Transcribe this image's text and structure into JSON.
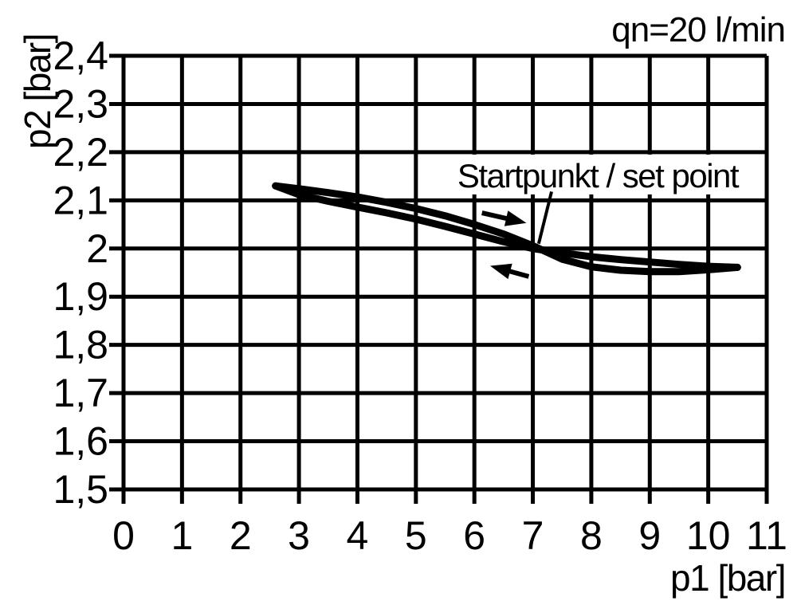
{
  "colors": {
    "ink": "#000000",
    "background": "#ffffff"
  },
  "chart_data": {
    "type": "line",
    "flow_annotation": "qn=20 l/min",
    "xlabel": "p1 [bar]",
    "ylabel": "p2 [bar]",
    "xlim": [
      0,
      11
    ],
    "ylim": [
      1.5,
      2.4
    ],
    "grid": true,
    "legend": "none",
    "xticks": [
      {
        "value": 0,
        "label": "0"
      },
      {
        "value": 1,
        "label": "1"
      },
      {
        "value": 2,
        "label": "2"
      },
      {
        "value": 3,
        "label": "3"
      },
      {
        "value": 4,
        "label": "4"
      },
      {
        "value": 5,
        "label": "5"
      },
      {
        "value": 6,
        "label": "6"
      },
      {
        "value": 7,
        "label": "7"
      },
      {
        "value": 8,
        "label": "8"
      },
      {
        "value": 9,
        "label": "9"
      },
      {
        "value": 10,
        "label": "10"
      },
      {
        "value": 11,
        "label": "11"
      }
    ],
    "yticks": [
      {
        "value": 1.5,
        "label": "1,5"
      },
      {
        "value": 1.6,
        "label": "1,6"
      },
      {
        "value": 1.7,
        "label": "1,7"
      },
      {
        "value": 1.8,
        "label": "1,8"
      },
      {
        "value": 1.9,
        "label": "1,9"
      },
      {
        "value": 2.0,
        "label": "2"
      },
      {
        "value": 2.1,
        "label": "2,1"
      },
      {
        "value": 2.2,
        "label": "2,2"
      },
      {
        "value": 2.3,
        "label": "2,3"
      },
      {
        "value": 2.4,
        "label": "2,4"
      }
    ],
    "set_point": {
      "label": "Startpunkt / set point",
      "x": 7.1,
      "y": 2.0,
      "label_anchor": [
        8.11,
        2.152
      ],
      "leader": [
        [
          7.32,
          2.118
        ],
        [
          7.1,
          2.01
        ]
      ]
    },
    "series": [
      {
        "name": "hysteresis-upper-branch",
        "x": [
          2.6,
          3.0,
          3.5,
          4.0,
          4.5,
          5.0,
          5.5,
          6.0,
          6.5,
          7.0,
          7.5,
          8.0,
          8.5,
          9.0,
          9.5,
          10.0,
          10.5
        ],
        "y": [
          2.13,
          2.124,
          2.116,
          2.107,
          2.096,
          2.083,
          2.068,
          2.05,
          2.03,
          2.006,
          1.978,
          1.962,
          1.955,
          1.952,
          1.952,
          1.956,
          1.961
        ]
      },
      {
        "name": "hysteresis-lower-branch",
        "x": [
          2.6,
          3.0,
          3.5,
          4.0,
          4.5,
          5.0,
          5.5,
          6.0,
          6.5,
          7.0,
          7.5,
          8.0,
          8.5,
          9.0,
          9.5,
          10.0,
          10.5
        ],
        "y": [
          2.13,
          2.112,
          2.098,
          2.086,
          2.074,
          2.061,
          2.046,
          2.03,
          2.014,
          2.0,
          1.991,
          1.983,
          1.977,
          1.972,
          1.967,
          1.963,
          1.961
        ]
      }
    ],
    "direction_arrows": [
      {
        "name": "rightward-direction-arrow",
        "from": [
          6.13,
          2.074
        ],
        "to": [
          6.89,
          2.053
        ]
      },
      {
        "name": "leftward-direction-arrow",
        "from": [
          6.93,
          1.942
        ],
        "to": [
          6.27,
          1.964
        ]
      }
    ]
  }
}
